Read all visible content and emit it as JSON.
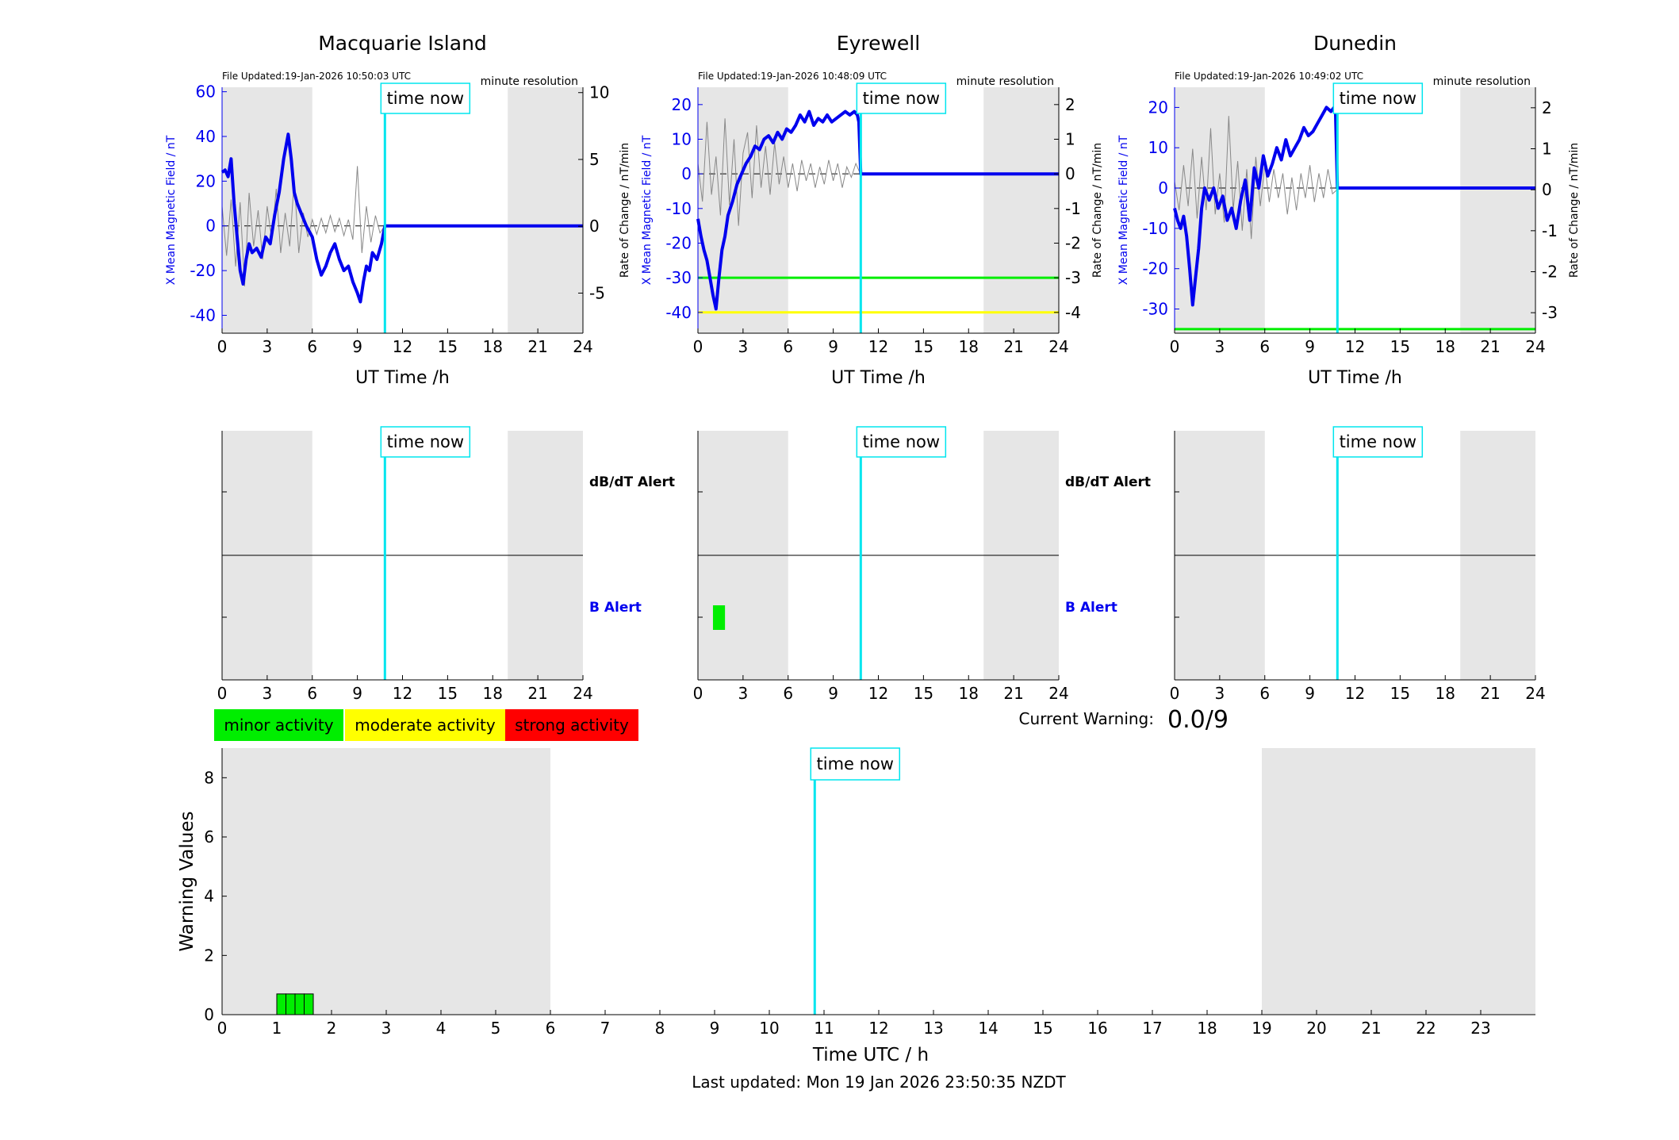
{
  "page": {
    "last_updated": "Last updated: Mon 19 Jan 2026 23:50:35 NZDT",
    "current_warning_label": "Current Warning:",
    "current_warning_value": "0.0/9"
  },
  "colors": {
    "x_series": "#0000ee",
    "rate_series": "#888888",
    "now_line": "#00e5ee",
    "night_shade": "#e6e6e6",
    "minor": "#00ee00",
    "moderate": "#ffff00",
    "strong": "#ff0000",
    "green_threshold": "#00ee00",
    "yellow_threshold": "#ffff00"
  },
  "legend": [
    {
      "label": "minor activity",
      "color": "#00ee00"
    },
    {
      "label": "moderate activity",
      "color": "#ffff00"
    },
    {
      "label": "strong activity",
      "color": "#ff0000"
    }
  ],
  "chart_data": [
    {
      "type": "line",
      "title": "Macquarie Island",
      "file_updated": "File Updated:19-Jan-2026 10:50:03 UTC",
      "resolution": "minute resolution",
      "xlabel": "UT Time /h",
      "ylabel_left": "X Mean Magnetic Field / nT",
      "ylabel_right": "Rate of Change / nT/min",
      "time_now_label": "time now",
      "time_now": 10.83,
      "xlim": [
        0,
        24
      ],
      "ylim_left": [
        -48,
        62
      ],
      "ylim_right": [
        -8.0,
        10.4
      ],
      "xticks": [
        0,
        3,
        6,
        9,
        12,
        15,
        18,
        21,
        24
      ],
      "yticks_left": [
        -40,
        -20,
        0,
        20,
        40,
        60
      ],
      "yticks_right": [
        -5,
        0,
        5,
        10
      ],
      "night_shading": [
        [
          0,
          6
        ],
        [
          19,
          24
        ]
      ],
      "thresholds": [],
      "x_series": {
        "t": [
          0,
          0.2,
          0.4,
          0.6,
          0.8,
          1.0,
          1.2,
          1.4,
          1.6,
          1.8,
          2.0,
          2.3,
          2.6,
          2.9,
          3.2,
          3.5,
          3.8,
          4.1,
          4.4,
          4.6,
          4.8,
          5.0,
          5.3,
          5.6,
          6.0,
          6.3,
          6.6,
          6.9,
          7.2,
          7.5,
          7.8,
          8.1,
          8.4,
          8.7,
          9.0,
          9.2,
          9.4,
          9.6,
          9.8,
          10.0,
          10.3,
          10.6,
          10.83
        ],
        "v": [
          24,
          25,
          22,
          30,
          10,
          -5,
          -20,
          -26,
          -15,
          -8,
          -12,
          -10,
          -14,
          -5,
          -8,
          5,
          15,
          30,
          41,
          30,
          15,
          10,
          5,
          0,
          -5,
          -15,
          -22,
          -18,
          -12,
          -8,
          -15,
          -20,
          -18,
          -25,
          -30,
          -34,
          -25,
          -18,
          -20,
          -12,
          -15,
          -8,
          0
        ]
      },
      "rate_series": {
        "t": [
          0,
          0.3,
          0.6,
          0.9,
          1.2,
          1.5,
          1.8,
          2.1,
          2.4,
          2.7,
          3.0,
          3.3,
          3.6,
          3.9,
          4.2,
          4.5,
          4.8,
          5.1,
          5.4,
          5.7,
          6.0,
          6.3,
          6.6,
          6.9,
          7.2,
          7.5,
          7.8,
          8.1,
          8.4,
          8.7,
          9.0,
          9.3,
          9.6,
          9.9,
          10.2,
          10.5,
          10.8
        ],
        "v": [
          1.5,
          -2.2,
          2.0,
          -3.0,
          1.8,
          -4.5,
          2.5,
          -1.5,
          1.2,
          -2.5,
          1.5,
          -1.0,
          2.8,
          -2.0,
          1.0,
          -1.5,
          3.5,
          -2.0,
          1.0,
          -0.8,
          0.5,
          -0.6,
          0.6,
          -0.5,
          0.8,
          -0.4,
          0.6,
          -0.7,
          0.5,
          -1.0,
          4.5,
          -2.0,
          1.5,
          -1.2,
          0.8,
          -0.5,
          0.0
        ]
      }
    },
    {
      "type": "line",
      "title": "Eyrewell",
      "file_updated": "File Updated:19-Jan-2026 10:48:09 UTC",
      "resolution": "minute resolution",
      "xlabel": "UT Time /h",
      "ylabel_left": "X Mean Magnetic Field / nT",
      "ylabel_right": "Rate of Change / nT/min",
      "time_now_label": "time now",
      "time_now": 10.83,
      "xlim": [
        0,
        24
      ],
      "ylim_left": [
        -46,
        25
      ],
      "ylim_right": [
        -4.6,
        2.5
      ],
      "xticks": [
        0,
        3,
        6,
        9,
        12,
        15,
        18,
        21,
        24
      ],
      "yticks_left": [
        -40,
        -30,
        -20,
        -10,
        0,
        10,
        20
      ],
      "yticks_right": [
        -4,
        -3,
        -2,
        -1,
        0,
        1,
        2
      ],
      "night_shading": [
        [
          0,
          6
        ],
        [
          19,
          24
        ]
      ],
      "thresholds": [
        {
          "value": -30,
          "color": "#00ee00"
        },
        {
          "value": -40,
          "color": "#ffff00"
        }
      ],
      "x_series": {
        "t": [
          0,
          0.2,
          0.4,
          0.6,
          0.8,
          1.0,
          1.2,
          1.4,
          1.6,
          1.8,
          2.0,
          2.3,
          2.6,
          2.9,
          3.2,
          3.5,
          3.8,
          4.1,
          4.4,
          4.7,
          5.0,
          5.3,
          5.6,
          5.9,
          6.2,
          6.5,
          6.8,
          7.1,
          7.4,
          7.7,
          8.0,
          8.3,
          8.6,
          8.9,
          9.2,
          9.5,
          9.8,
          10.1,
          10.4,
          10.6,
          10.7,
          10.83
        ],
        "v": [
          -13,
          -18,
          -22,
          -25,
          -30,
          -35,
          -39,
          -30,
          -22,
          -18,
          -12,
          -8,
          -3,
          0,
          3,
          5,
          8,
          7,
          10,
          11,
          9,
          12,
          10,
          13,
          12,
          14,
          17,
          15,
          18,
          14,
          16,
          15,
          17,
          15,
          16,
          17,
          18,
          17,
          18,
          17,
          15,
          0
        ]
      },
      "rate_series": {
        "t": [
          0,
          0.3,
          0.6,
          0.9,
          1.2,
          1.5,
          1.8,
          2.1,
          2.4,
          2.7,
          3.0,
          3.3,
          3.6,
          3.9,
          4.2,
          4.5,
          4.8,
          5.1,
          5.4,
          5.7,
          6.0,
          6.3,
          6.6,
          6.9,
          7.2,
          7.5,
          7.8,
          8.1,
          8.4,
          8.7,
          9.0,
          9.3,
          9.6,
          9.9,
          10.2,
          10.5,
          10.8
        ],
        "v": [
          0.3,
          -0.8,
          1.5,
          -0.6,
          0.5,
          -1.2,
          1.6,
          -0.9,
          1.0,
          -1.5,
          0.6,
          1.2,
          -0.7,
          1.4,
          -0.4,
          0.8,
          -0.6,
          0.9,
          -0.3,
          0.5,
          -0.4,
          0.3,
          -0.5,
          0.4,
          -0.2,
          0.3,
          -0.4,
          0.2,
          -0.3,
          0.4,
          -0.2,
          0.3,
          -0.4,
          0.2,
          -0.1,
          0.3,
          0.0
        ]
      }
    },
    {
      "type": "line",
      "title": "Dunedin",
      "file_updated": "File Updated:19-Jan-2026 10:49:02 UTC",
      "resolution": "minute resolution",
      "xlabel": "UT Time /h",
      "ylabel_left": "X Mean Magnetic Field / nT",
      "ylabel_right": "Rate of Change / nT/min",
      "time_now_label": "time now",
      "time_now": 10.83,
      "xlim": [
        0,
        24
      ],
      "ylim_left": [
        -36,
        25
      ],
      "ylim_right": [
        -3.5,
        2.5
      ],
      "xticks": [
        0,
        3,
        6,
        9,
        12,
        15,
        18,
        21,
        24
      ],
      "yticks_left": [
        -30,
        -20,
        -10,
        0,
        10,
        20
      ],
      "yticks_right": [
        -3,
        -2,
        -1,
        0,
        1,
        2
      ],
      "night_shading": [
        [
          0,
          6
        ],
        [
          19,
          24
        ]
      ],
      "thresholds": [
        {
          "value": -35,
          "color": "#00ee00"
        }
      ],
      "x_series": {
        "t": [
          0,
          0.2,
          0.4,
          0.6,
          0.8,
          1.0,
          1.2,
          1.4,
          1.6,
          1.8,
          2.0,
          2.3,
          2.6,
          2.9,
          3.2,
          3.5,
          3.8,
          4.1,
          4.4,
          4.7,
          5.0,
          5.3,
          5.6,
          5.9,
          6.2,
          6.5,
          6.8,
          7.1,
          7.4,
          7.7,
          8.0,
          8.3,
          8.6,
          8.9,
          9.2,
          9.5,
          9.8,
          10.1,
          10.4,
          10.6,
          10.7,
          10.83
        ],
        "v": [
          -5,
          -8,
          -10,
          -7,
          -12,
          -20,
          -29,
          -22,
          -15,
          -5,
          0,
          -3,
          0,
          -5,
          -2,
          -8,
          -5,
          -10,
          -3,
          2,
          -8,
          5,
          0,
          8,
          3,
          6,
          10,
          7,
          12,
          8,
          10,
          12,
          15,
          13,
          14,
          16,
          18,
          20,
          19,
          20,
          19,
          0
        ]
      },
      "rate_series": {
        "t": [
          0,
          0.3,
          0.6,
          0.9,
          1.2,
          1.5,
          1.8,
          2.1,
          2.4,
          2.7,
          3.0,
          3.3,
          3.6,
          3.9,
          4.2,
          4.5,
          4.8,
          5.1,
          5.4,
          5.7,
          6.0,
          6.3,
          6.6,
          6.9,
          7.2,
          7.5,
          7.8,
          8.1,
          8.4,
          8.7,
          9.0,
          9.3,
          9.6,
          9.9,
          10.2,
          10.5,
          10.8
        ],
        "v": [
          0.2,
          -0.5,
          0.6,
          -0.4,
          1.0,
          -0.7,
          0.8,
          -0.5,
          1.5,
          -0.6,
          0.4,
          -0.8,
          1.8,
          -0.5,
          0.7,
          -1.0,
          0.5,
          -1.2,
          0.8,
          -0.4,
          0.6,
          -0.3,
          0.5,
          -0.2,
          0.4,
          -0.6,
          0.3,
          -0.5,
          0.4,
          -0.2,
          0.6,
          -0.3,
          0.4,
          -0.2,
          0.5,
          -0.1,
          0.0
        ]
      }
    },
    {
      "type": "bar",
      "title": "",
      "station": "Macquarie Island",
      "xlim": [
        0,
        24
      ],
      "xticks": [
        0,
        3,
        6,
        9,
        12,
        15,
        18,
        21,
        24
      ],
      "time_now_label": "time now",
      "time_now": 10.83,
      "night_shading": [
        [
          0,
          6
        ],
        [
          19,
          24
        ]
      ],
      "upper_label": "dB/dT Alert",
      "lower_label": "B Alert",
      "upper_events": [],
      "lower_events": []
    },
    {
      "type": "bar",
      "title": "",
      "station": "Eyrewell",
      "xlim": [
        0,
        24
      ],
      "xticks": [
        0,
        3,
        6,
        9,
        12,
        15,
        18,
        21,
        24
      ],
      "time_now_label": "time now",
      "time_now": 10.83,
      "night_shading": [
        [
          0,
          6
        ],
        [
          19,
          24
        ]
      ],
      "upper_label": "dB/dT Alert",
      "lower_label": "B Alert",
      "upper_events": [],
      "lower_events": [
        {
          "start": 1.0,
          "end": 1.8,
          "level": "minor"
        }
      ]
    },
    {
      "type": "bar",
      "title": "",
      "station": "Dunedin",
      "xlim": [
        0,
        24
      ],
      "xticks": [
        0,
        3,
        6,
        9,
        12,
        15,
        18,
        21,
        24
      ],
      "time_now_label": "time now",
      "time_now": 10.83,
      "night_shading": [
        [
          0,
          6
        ],
        [
          19,
          24
        ]
      ],
      "upper_label": "dB/dT Alert",
      "lower_label": "B Alert",
      "upper_events": [],
      "lower_events": []
    },
    {
      "type": "bar",
      "title": "",
      "xlabel": "Time UTC / h",
      "ylabel": "Warning Values",
      "xlim": [
        0,
        24
      ],
      "ylim": [
        0,
        9
      ],
      "xticks": [
        0,
        1,
        2,
        3,
        4,
        5,
        6,
        7,
        8,
        9,
        10,
        11,
        12,
        13,
        14,
        15,
        16,
        17,
        18,
        19,
        20,
        21,
        22,
        23
      ],
      "yticks": [
        0,
        2,
        4,
        6,
        8
      ],
      "time_now_label": "time now",
      "time_now": 10.83,
      "night_shading": [
        [
          0,
          6
        ],
        [
          19,
          24
        ]
      ],
      "bars": [
        {
          "start": 1.0,
          "end": 1.1667,
          "value": 0.7,
          "level": "minor"
        },
        {
          "start": 1.1667,
          "end": 1.3333,
          "value": 0.7,
          "level": "minor"
        },
        {
          "start": 1.3333,
          "end": 1.5,
          "value": 0.7,
          "level": "minor"
        },
        {
          "start": 1.5,
          "end": 1.6667,
          "value": 0.7,
          "level": "minor"
        }
      ]
    }
  ]
}
